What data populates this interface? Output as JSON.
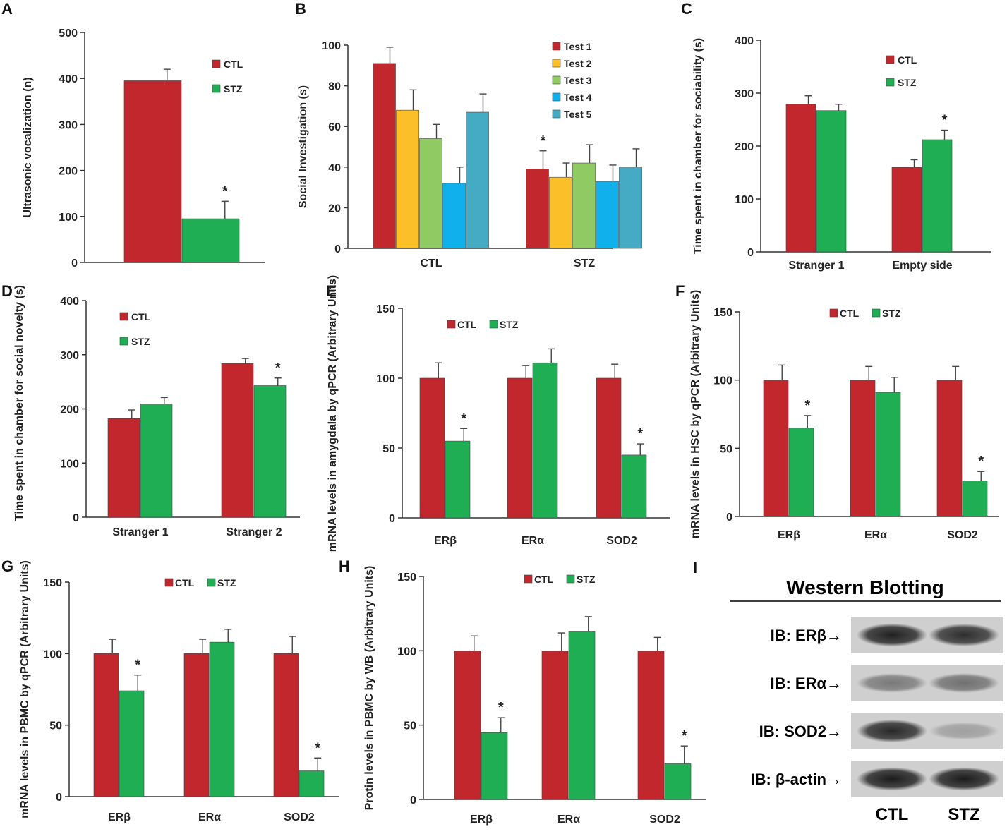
{
  "colors": {
    "CTL": "#c1272d",
    "STZ": "#1fae54",
    "Test 1": "#c1272d",
    "Test 2": "#fbbf29",
    "Test 3": "#8fcb62",
    "Test 4": "#0fb0ec",
    "Test 5": "#45aac3"
  },
  "chart_data": [
    {
      "id": "A",
      "panel": "A",
      "type": "bar",
      "categories": [
        ""
      ],
      "series": [
        {
          "name": "CTL",
          "values": [
            395
          ],
          "errors": [
            25
          ],
          "sig": [
            false
          ]
        },
        {
          "name": "STZ",
          "values": [
            95
          ],
          "errors": [
            38
          ],
          "sig": [
            true
          ]
        }
      ],
      "ylabel": "Ultrasonic vocalization (n)",
      "ylim": [
        0,
        500
      ],
      "yticks": [
        0,
        100,
        200,
        300,
        400,
        500
      ],
      "legend": "top-right"
    },
    {
      "id": "B",
      "panel": "B",
      "type": "bar",
      "categories": [
        "CTL",
        "STZ"
      ],
      "series": [
        {
          "name": "Test 1",
          "values": [
            91,
            39
          ],
          "errors": [
            8,
            9
          ],
          "sig": [
            false,
            true
          ]
        },
        {
          "name": "Test 2",
          "values": [
            68,
            35
          ],
          "errors": [
            10,
            7
          ],
          "sig": [
            false,
            false
          ]
        },
        {
          "name": "Test 3",
          "values": [
            54,
            42
          ],
          "errors": [
            7,
            9
          ],
          "sig": [
            false,
            false
          ]
        },
        {
          "name": "Test 4",
          "values": [
            32,
            33
          ],
          "errors": [
            8,
            8
          ],
          "sig": [
            false,
            false
          ]
        },
        {
          "name": "Test 5",
          "values": [
            67,
            40
          ],
          "errors": [
            9,
            9
          ],
          "sig": [
            false,
            false
          ]
        }
      ],
      "ylabel": "Social Investigation (s)",
      "ylim": [
        0,
        100
      ],
      "yticks": [
        0,
        20,
        40,
        60,
        80,
        100
      ],
      "legend": "top-right"
    },
    {
      "id": "C",
      "panel": "C",
      "type": "bar",
      "categories": [
        "Stranger 1",
        "Empty side"
      ],
      "series": [
        {
          "name": "CTL",
          "values": [
            279,
            160
          ],
          "errors": [
            16,
            14
          ],
          "sig": [
            false,
            false
          ]
        },
        {
          "name": "STZ",
          "values": [
            267,
            212
          ],
          "errors": [
            12,
            18
          ],
          "sig": [
            false,
            true
          ]
        }
      ],
      "ylabel": "Time spent in chamber for sociability (s)",
      "ylim": [
        0,
        400
      ],
      "yticks": [
        0,
        100,
        200,
        300,
        400
      ],
      "legend": "top-right"
    },
    {
      "id": "D",
      "panel": "D",
      "type": "bar",
      "categories": [
        "Stranger 1",
        "Stranger 2"
      ],
      "series": [
        {
          "name": "CTL",
          "values": [
            182,
            284
          ],
          "errors": [
            16,
            9
          ],
          "sig": [
            false,
            false
          ]
        },
        {
          "name": "STZ",
          "values": [
            209,
            243
          ],
          "errors": [
            12,
            14
          ],
          "sig": [
            false,
            true
          ]
        }
      ],
      "ylabel": "Time spent in chamber for social novelty (s)",
      "ylim": [
        0,
        400
      ],
      "yticks": [
        0,
        100,
        200,
        300,
        400
      ],
      "legend": "top-left"
    },
    {
      "id": "E",
      "panel": "E",
      "type": "bar",
      "categories": [
        "ERβ",
        "ERα",
        "SOD2"
      ],
      "series": [
        {
          "name": "CTL",
          "values": [
            100,
            100,
            100
          ],
          "errors": [
            11,
            9,
            10
          ],
          "sig": [
            false,
            false,
            false
          ]
        },
        {
          "name": "STZ",
          "values": [
            55,
            111,
            45
          ],
          "errors": [
            9,
            10,
            8
          ],
          "sig": [
            true,
            false,
            true
          ]
        }
      ],
      "ylabel": "mRNA levels in amygdala by qPCR (Arbitrary Units)",
      "ylim": [
        0,
        150
      ],
      "yticks": [
        0,
        50,
        100,
        150
      ],
      "legend": "top-inline"
    },
    {
      "id": "F",
      "panel": "F",
      "type": "bar",
      "categories": [
        "ERβ",
        "ERα",
        "SOD2"
      ],
      "series": [
        {
          "name": "CTL",
          "values": [
            100,
            100,
            100
          ],
          "errors": [
            11,
            10,
            10
          ],
          "sig": [
            false,
            false,
            false
          ]
        },
        {
          "name": "STZ",
          "values": [
            65,
            91,
            26
          ],
          "errors": [
            9,
            11,
            7
          ],
          "sig": [
            true,
            false,
            true
          ]
        }
      ],
      "ylabel": "mRNA levels in HSC by qPCR (Arbitrary Units)",
      "ylim": [
        0,
        150
      ],
      "yticks": [
        0,
        50,
        100,
        150
      ],
      "legend": "top-inline"
    },
    {
      "id": "G",
      "panel": "G",
      "type": "bar",
      "categories": [
        "ERβ",
        "ERα",
        "SOD2"
      ],
      "series": [
        {
          "name": "CTL",
          "values": [
            100,
            100,
            100
          ],
          "errors": [
            10,
            10,
            12
          ],
          "sig": [
            false,
            false,
            false
          ]
        },
        {
          "name": "STZ",
          "values": [
            74,
            108,
            18
          ],
          "errors": [
            11,
            9,
            9
          ],
          "sig": [
            true,
            false,
            true
          ]
        }
      ],
      "ylabel": "mRNA levels in PBMC by qPCR (Arbitrary Units)",
      "ylim": [
        0,
        150
      ],
      "yticks": [
        0,
        50,
        100,
        150
      ],
      "legend": "top-inline"
    },
    {
      "id": "H",
      "panel": "H",
      "type": "bar",
      "categories": [
        "ERβ",
        "ERα",
        "SOD2"
      ],
      "series": [
        {
          "name": "CTL",
          "values": [
            100,
            100,
            100
          ],
          "errors": [
            10,
            12,
            9
          ],
          "sig": [
            false,
            false,
            false
          ]
        },
        {
          "name": "STZ",
          "values": [
            45,
            113,
            24
          ],
          "errors": [
            10,
            10,
            12
          ],
          "sig": [
            true,
            false,
            true
          ]
        }
      ],
      "ylabel": "Protin levels in PBMC by WB (Arbitrary Units)",
      "ylim": [
        0,
        150
      ],
      "yticks": [
        0,
        50,
        100,
        150
      ],
      "legend": "top-inline"
    }
  ],
  "western_blot": {
    "panel": "I",
    "title": "Western Blotting",
    "lanes": [
      "CTL",
      "STZ"
    ],
    "rows": [
      {
        "label": "IB: ERβ→",
        "intensity": [
          0.92,
          0.85
        ]
      },
      {
        "label": "IB: ERα→",
        "intensity": [
          0.45,
          0.5
        ]
      },
      {
        "label": "IB: SOD2→",
        "intensity": [
          0.88,
          0.25
        ]
      },
      {
        "label": "IB: β-actin→",
        "intensity": [
          0.95,
          0.95
        ]
      }
    ]
  }
}
